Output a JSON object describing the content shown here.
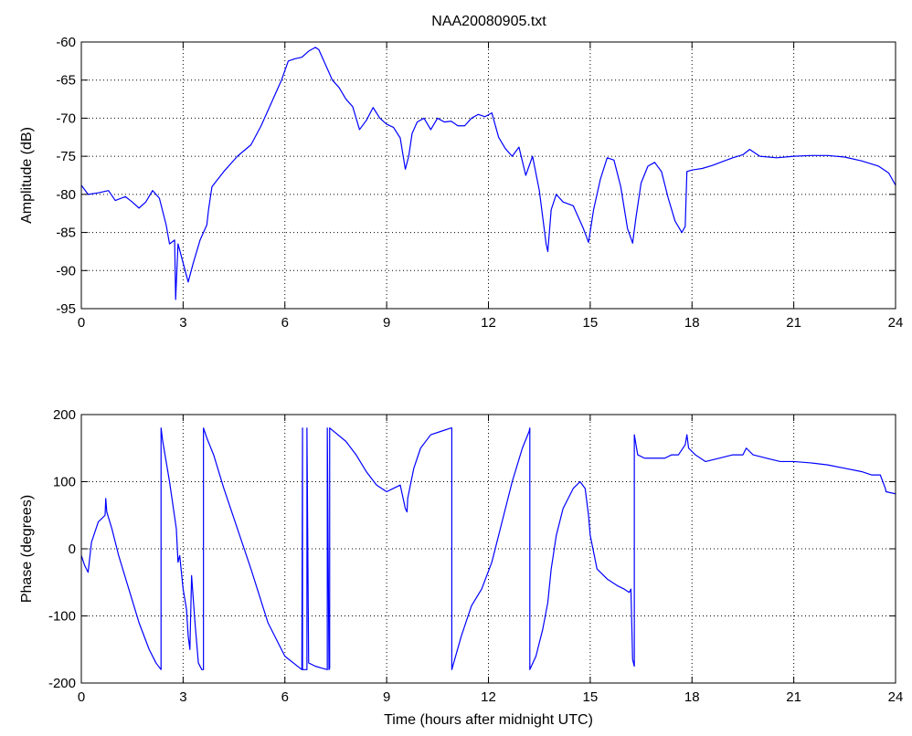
{
  "figure": {
    "title": "NAA20080905.txt",
    "line_color": "#0000ff",
    "grid": true,
    "grid_style": "dotted"
  },
  "chart_data": [
    {
      "type": "line",
      "ylabel": "Amplitude (dB)",
      "xlabel": "",
      "xlim": [
        0,
        24
      ],
      "ylim": [
        -95,
        -60
      ],
      "xticks": [
        0,
        3,
        6,
        9,
        12,
        15,
        18,
        21,
        24
      ],
      "yticks": [
        -95,
        -90,
        -85,
        -80,
        -75,
        -70,
        -65,
        -60
      ],
      "series": [
        {
          "color": "#0000ff",
          "x": [
            0,
            0.2,
            0.5,
            0.8,
            1.0,
            1.3,
            1.5,
            1.7,
            1.9,
            2.1,
            2.3,
            2.5,
            2.6,
            2.75,
            2.78,
            2.85,
            3.0,
            3.15,
            3.3,
            3.5,
            3.7,
            3.75,
            3.85,
            4.2,
            4.6,
            5.0,
            5.3,
            5.6,
            5.9,
            6.1,
            6.3,
            6.5,
            6.7,
            6.9,
            7.0,
            7.2,
            7.4,
            7.6,
            7.8,
            8.0,
            8.2,
            8.4,
            8.6,
            8.8,
            9.0,
            9.2,
            9.4,
            9.55,
            9.65,
            9.75,
            9.9,
            10.1,
            10.3,
            10.5,
            10.7,
            10.9,
            11.1,
            11.3,
            11.5,
            11.7,
            11.9,
            12.1,
            12.3,
            12.5,
            12.7,
            12.9,
            13.1,
            13.3,
            13.5,
            13.7,
            13.75,
            13.85,
            14.0,
            14.2,
            14.5,
            14.8,
            14.95,
            15.1,
            15.3,
            15.5,
            15.7,
            15.9,
            16.1,
            16.25,
            16.35,
            16.5,
            16.7,
            16.9,
            17.1,
            17.3,
            17.5,
            17.7,
            17.8,
            17.85,
            18.0,
            18.3,
            18.6,
            18.9,
            19.2,
            19.5,
            19.7,
            20.0,
            20.5,
            21.0,
            21.5,
            22.0,
            22.5,
            23.0,
            23.5,
            23.8,
            24.0
          ],
          "y": [
            -78.8,
            -80,
            -79.8,
            -79.5,
            -80.8,
            -80.3,
            -81,
            -81.8,
            -81,
            -79.5,
            -80.5,
            -84,
            -86.5,
            -86,
            -93.8,
            -86.5,
            -89,
            -91.5,
            -89,
            -86,
            -84,
            -82,
            -79,
            -77,
            -75,
            -73.5,
            -71,
            -68,
            -65,
            -62.5,
            -62.2,
            -62,
            -61.2,
            -60.7,
            -61,
            -63,
            -65,
            -66,
            -67.5,
            -68.5,
            -71.5,
            -70.3,
            -68.6,
            -70,
            -70.8,
            -71.2,
            -72.6,
            -76.7,
            -75,
            -72,
            -70.5,
            -70,
            -71.5,
            -70,
            -70.5,
            -70.4,
            -71,
            -71,
            -70,
            -69.5,
            -69.8,
            -69.3,
            -72.5,
            -74,
            -75,
            -73.8,
            -77.5,
            -75,
            -79.5,
            -86.5,
            -87.5,
            -82,
            -80,
            -81,
            -81.5,
            -84.5,
            -86.3,
            -82,
            -78,
            -75.2,
            -75.5,
            -79,
            -84.5,
            -86.4,
            -83,
            -78.5,
            -76.3,
            -75.8,
            -77,
            -80.5,
            -83.5,
            -85,
            -84.2,
            -77,
            -76.8,
            -76.6,
            -76.2,
            -75.7,
            -75.2,
            -74.8,
            -74.1,
            -75,
            -75.2,
            -75,
            -74.9,
            -74.9,
            -75.1,
            -75.6,
            -76.3,
            -77.2,
            -78.8
          ]
        }
      ]
    },
    {
      "type": "line",
      "ylabel": "Phase (degrees)",
      "xlabel": "Time (hours after midnight UTC)",
      "xlim": [
        0,
        24
      ],
      "ylim": [
        -200,
        200
      ],
      "xticks": [
        0,
        3,
        6,
        9,
        12,
        15,
        18,
        21,
        24
      ],
      "yticks": [
        -200,
        -100,
        0,
        100,
        200
      ],
      "series": [
        {
          "color": "#0000ff",
          "x": [
            0,
            0.1,
            0.2,
            0.3,
            0.5,
            0.7,
            0.72,
            0.75,
            0.9,
            1.1,
            1.4,
            1.7,
            2.0,
            2.2,
            2.35,
            2.35,
            2.4,
            2.6,
            2.8,
            2.85,
            2.9,
            3.0,
            3.1,
            3.15,
            3.2,
            3.25,
            3.35,
            3.45,
            3.55,
            3.6,
            3.6,
            3.7,
            3.9,
            4.2,
            4.6,
            5.0,
            5.5,
            6.0,
            6.5,
            6.52,
            6.52,
            6.65,
            6.65,
            6.7,
            6.9,
            7.1,
            7.25,
            7.25,
            7.3,
            7.32,
            7.32,
            7.8,
            8.1,
            8.4,
            8.7,
            9.0,
            9.2,
            9.4,
            9.55,
            9.6,
            9.62,
            9.8,
            10.0,
            10.3,
            10.6,
            10.9,
            10.92,
            10.92,
            11.2,
            11.5,
            11.8,
            12.1,
            12.4,
            12.7,
            13.0,
            13.2,
            13.22,
            13.22,
            13.4,
            13.6,
            13.75,
            13.85,
            14.0,
            14.2,
            14.5,
            14.7,
            14.85,
            14.95,
            15.0,
            15.2,
            15.5,
            15.8,
            16.0,
            16.15,
            16.2,
            16.25,
            16.3,
            16.3,
            16.4,
            16.6,
            16.9,
            17.2,
            17.4,
            17.6,
            17.8,
            17.85,
            17.9,
            18.1,
            18.4,
            18.8,
            19.2,
            19.5,
            19.6,
            19.8,
            20.2,
            20.6,
            21.0,
            21.5,
            22.0,
            22.5,
            23.0,
            23.3,
            23.55,
            23.7,
            23.72,
            24.0
          ],
          "y": [
            -10,
            -25,
            -35,
            10,
            40,
            50,
            75,
            55,
            30,
            -10,
            -60,
            -110,
            -150,
            -170,
            -180,
            180,
            160,
            100,
            30,
            -20,
            -10,
            -60,
            -90,
            -130,
            -150,
            -40,
            -110,
            -170,
            -180,
            -180,
            180,
            165,
            140,
            90,
            30,
            -30,
            -110,
            -160,
            -180,
            180,
            -180,
            -180,
            180,
            -170,
            -175,
            -178,
            -180,
            180,
            -180,
            -178,
            180,
            160,
            140,
            115,
            95,
            85,
            90,
            95,
            60,
            55,
            75,
            120,
            150,
            170,
            175,
            180,
            180,
            -180,
            -130,
            -85,
            -60,
            -20,
            40,
            100,
            150,
            175,
            180,
            -180,
            -160,
            -120,
            -80,
            -30,
            20,
            60,
            90,
            100,
            90,
            50,
            20,
            -30,
            -45,
            -55,
            -60,
            -65,
            -60,
            -165,
            -175,
            170,
            140,
            135,
            135,
            135,
            140,
            140,
            155,
            170,
            150,
            140,
            130,
            135,
            140,
            140,
            150,
            140,
            135,
            130,
            130,
            128,
            125,
            120,
            115,
            110,
            110,
            90,
            85,
            82
          ]
        }
      ]
    }
  ]
}
